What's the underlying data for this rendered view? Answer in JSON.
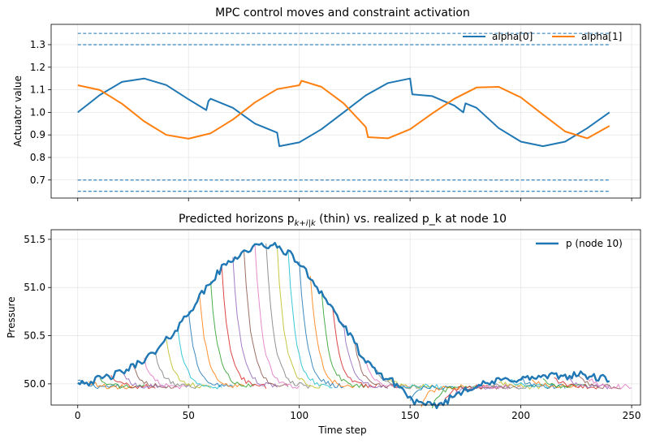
{
  "chart_data": [
    {
      "type": "line",
      "title": "MPC control moves and constraint activation",
      "xlabel": "",
      "ylabel": "Actuator value",
      "xlim": [
        -12,
        254
      ],
      "ylim": [
        0.62,
        1.39
      ],
      "xticks": [
        0,
        50,
        100,
        150,
        200,
        250
      ],
      "show_xtick_labels": false,
      "yticks": [
        0.7,
        0.8,
        0.9,
        1.0,
        1.1,
        1.2,
        1.3
      ],
      "ytick_labels": [
        "0.7",
        "0.8",
        "0.9",
        "1.0",
        "1.1",
        "1.2",
        "1.3"
      ],
      "grid": true,
      "legend": {
        "placement": "top-right",
        "columns": 2
      },
      "series": [
        {
          "name": "alpha[0]",
          "color": "#1f77b4",
          "x": [
            0,
            10,
            20,
            30,
            40,
            50,
            58,
            59,
            60,
            70,
            80,
            90,
            91,
            100,
            110,
            120,
            130,
            140,
            150,
            151,
            160,
            170,
            174,
            175,
            180,
            190,
            200,
            210,
            220,
            230,
            240
          ],
          "y": [
            1.0,
            1.077,
            1.135,
            1.15,
            1.121,
            1.058,
            1.01,
            1.05,
            1.06,
            1.02,
            0.95,
            0.91,
            0.85,
            0.867,
            0.925,
            1.0,
            1.075,
            1.13,
            1.15,
            1.08,
            1.072,
            1.03,
            1.0,
            1.04,
            1.02,
            0.93,
            0.87,
            0.85,
            0.87,
            0.93,
            1.0
          ]
        },
        {
          "name": "alpha[1]",
          "color": "#ff7f0e",
          "x": [
            0,
            10,
            20,
            30,
            40,
            50,
            60,
            70,
            80,
            90,
            100,
            101,
            110,
            120,
            130,
            131,
            140,
            150,
            160,
            170,
            180,
            190,
            200,
            210,
            220,
            230,
            240
          ],
          "y": [
            1.12,
            1.099,
            1.038,
            0.96,
            0.9,
            0.883,
            0.907,
            0.968,
            1.044,
            1.103,
            1.12,
            1.14,
            1.113,
            1.04,
            0.935,
            0.89,
            0.885,
            0.925,
            0.995,
            1.06,
            1.11,
            1.113,
            1.066,
            0.99,
            0.915,
            0.885,
            0.94
          ]
        }
      ],
      "constraint_lines": {
        "color": "#1f77b4",
        "style": "dashed",
        "x_range": [
          0,
          240
        ],
        "values": [
          0.65,
          0.7,
          1.3,
          1.35
        ]
      }
    },
    {
      "type": "line",
      "title": "Predicted horizons p",
      "title_subscript": "k+i|k",
      "title_tail": " (thin) vs. realized p_k at node 10",
      "xlabel": "Time step",
      "ylabel": "Pressure",
      "xlim": [
        -12,
        254
      ],
      "ylim": [
        49.78,
        51.6
      ],
      "xticks": [
        0,
        50,
        100,
        150,
        200,
        250
      ],
      "xtick_labels": [
        "0",
        "50",
        "100",
        "150",
        "200",
        "250"
      ],
      "yticks": [
        50.0,
        50.5,
        51.0,
        51.5
      ],
      "ytick_labels": [
        "50.0",
        "50.5",
        "51.0",
        "51.5"
      ],
      "grid": true,
      "legend": {
        "placement": "top-right",
        "columns": 1
      },
      "realized": {
        "name": "p (node 10)",
        "color": "#1f77b4",
        "x": [
          0,
          5,
          10,
          15,
          20,
          25,
          30,
          35,
          40,
          45,
          50,
          55,
          60,
          65,
          70,
          75,
          80,
          85,
          90,
          95,
          100,
          105,
          110,
          115,
          120,
          125,
          130,
          135,
          140,
          145,
          150,
          155,
          160,
          165,
          170,
          175,
          180,
          185,
          190,
          195,
          200,
          205,
          210,
          215,
          220,
          225,
          230,
          235,
          240
        ],
        "y": [
          50.03,
          50.02,
          50.05,
          50.08,
          50.12,
          50.18,
          50.26,
          50.32,
          50.45,
          50.58,
          50.74,
          50.9,
          51.05,
          51.2,
          51.3,
          51.37,
          51.42,
          51.44,
          51.42,
          51.36,
          51.25,
          51.1,
          50.95,
          50.78,
          50.6,
          50.42,
          50.22,
          50.12,
          50.05,
          49.98,
          49.85,
          49.78,
          49.77,
          49.8,
          49.88,
          49.95,
          49.98,
          50.0,
          50.03,
          50.05,
          50.05,
          50.06,
          50.07,
          50.08,
          50.08,
          50.1,
          50.08,
          50.06,
          50.05
        ]
      },
      "realized_noise": 0.022,
      "horizon_colors": [
        "#1f77b4",
        "#ff7f0e",
        "#2ca02c",
        "#d62728",
        "#9467bd",
        "#8c564b",
        "#e377c2",
        "#7f7f7f",
        "#bcbd22",
        "#17becf"
      ],
      "horizon_starts": [
        0,
        5,
        10,
        15,
        20,
        25,
        30,
        35,
        40,
        45,
        50,
        55,
        60,
        65,
        70,
        75,
        80,
        85,
        90,
        95,
        100,
        105,
        110,
        115,
        120,
        125,
        130,
        135,
        140,
        145,
        150,
        155,
        160,
        165,
        170,
        175,
        180,
        185,
        190,
        195,
        200,
        205,
        210,
        215,
        220,
        225,
        230
      ],
      "horizon_length": 20,
      "horizon_floor": 49.97
    }
  ]
}
